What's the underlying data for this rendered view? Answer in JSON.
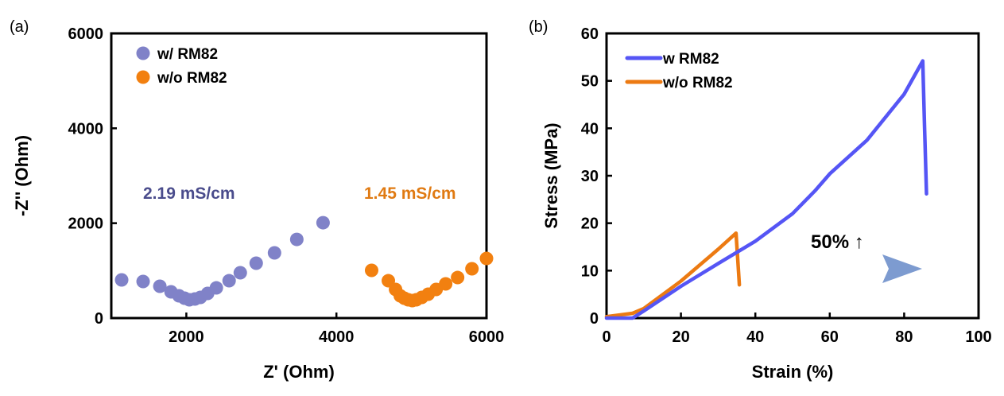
{
  "chart_data": [
    {
      "type": "scatter",
      "panel_label": "(a)",
      "xlabel": "Z' (Ohm)",
      "ylabel": "-Z'' (Ohm)",
      "xlim": [
        1000,
        6000
      ],
      "ylim": [
        0,
        6000
      ],
      "xticks": [
        2000,
        4000,
        6000
      ],
      "yticks": [
        0,
        2000,
        4000,
        6000
      ],
      "grid": false,
      "legend_position": "top-left",
      "series": [
        {
          "name": "w/ RM82",
          "color": "#8082c8",
          "x": [
            1138,
            1424,
            1647,
            1796,
            1902,
            1976,
            2040,
            2114,
            2188,
            2284,
            2400,
            2570,
            2719,
            2931,
            3175,
            3472,
            3822
          ],
          "y": [
            804,
            771,
            670,
            553,
            469,
            419,
            385,
            402,
            436,
            519,
            636,
            787,
            955,
            1156,
            1374,
            1658,
            2010
          ]
        },
        {
          "name": "w/o RM82",
          "color": "#f28010",
          "x": [
            4469,
            4692,
            4788,
            4851,
            4904,
            4957,
            5011,
            5064,
            5138,
            5223,
            5329,
            5456,
            5615,
            5806,
            6000
          ],
          "y": [
            1005,
            787,
            603,
            469,
            419,
            385,
            369,
            385,
            436,
            503,
            603,
            720,
            854,
            1039,
            1256
          ]
        }
      ],
      "annotations": [
        {
          "text": "2.19 mS/cm",
          "color": "#4a4c8c"
        },
        {
          "text": "1.45 mS/cm",
          "color": "#e07a12"
        }
      ]
    },
    {
      "type": "line",
      "panel_label": "(b)",
      "xlabel": "Strain (%)",
      "ylabel": "Stress (MPa)",
      "xlim": [
        0,
        100
      ],
      "ylim": [
        0,
        60
      ],
      "xticks": [
        0,
        20,
        40,
        60,
        80,
        100
      ],
      "yticks": [
        0,
        10,
        20,
        30,
        40,
        50,
        60
      ],
      "grid": false,
      "legend_position": "top-left",
      "series": [
        {
          "name": "w RM82",
          "color": "#5555f5",
          "x": [
            0,
            7,
            10,
            20,
            30,
            40,
            50,
            56,
            60,
            70,
            80,
            85,
            85.5,
            86
          ],
          "y": [
            0,
            0,
            1.5,
            6.7,
            11.5,
            16.2,
            22,
            26.8,
            30.4,
            37.5,
            47.2,
            54.2,
            40,
            26.2
          ]
        },
        {
          "name": "w/o RM82",
          "color": "#ec7a12",
          "x": [
            0,
            7,
            10,
            20,
            30,
            34.8,
            35.3,
            35.7
          ],
          "y": [
            0.3,
            1,
            2,
            7.8,
            14.5,
            17.9,
            12,
            7
          ]
        }
      ],
      "annotations": [
        {
          "text": "50% ↑",
          "color": "#000000"
        }
      ]
    }
  ]
}
